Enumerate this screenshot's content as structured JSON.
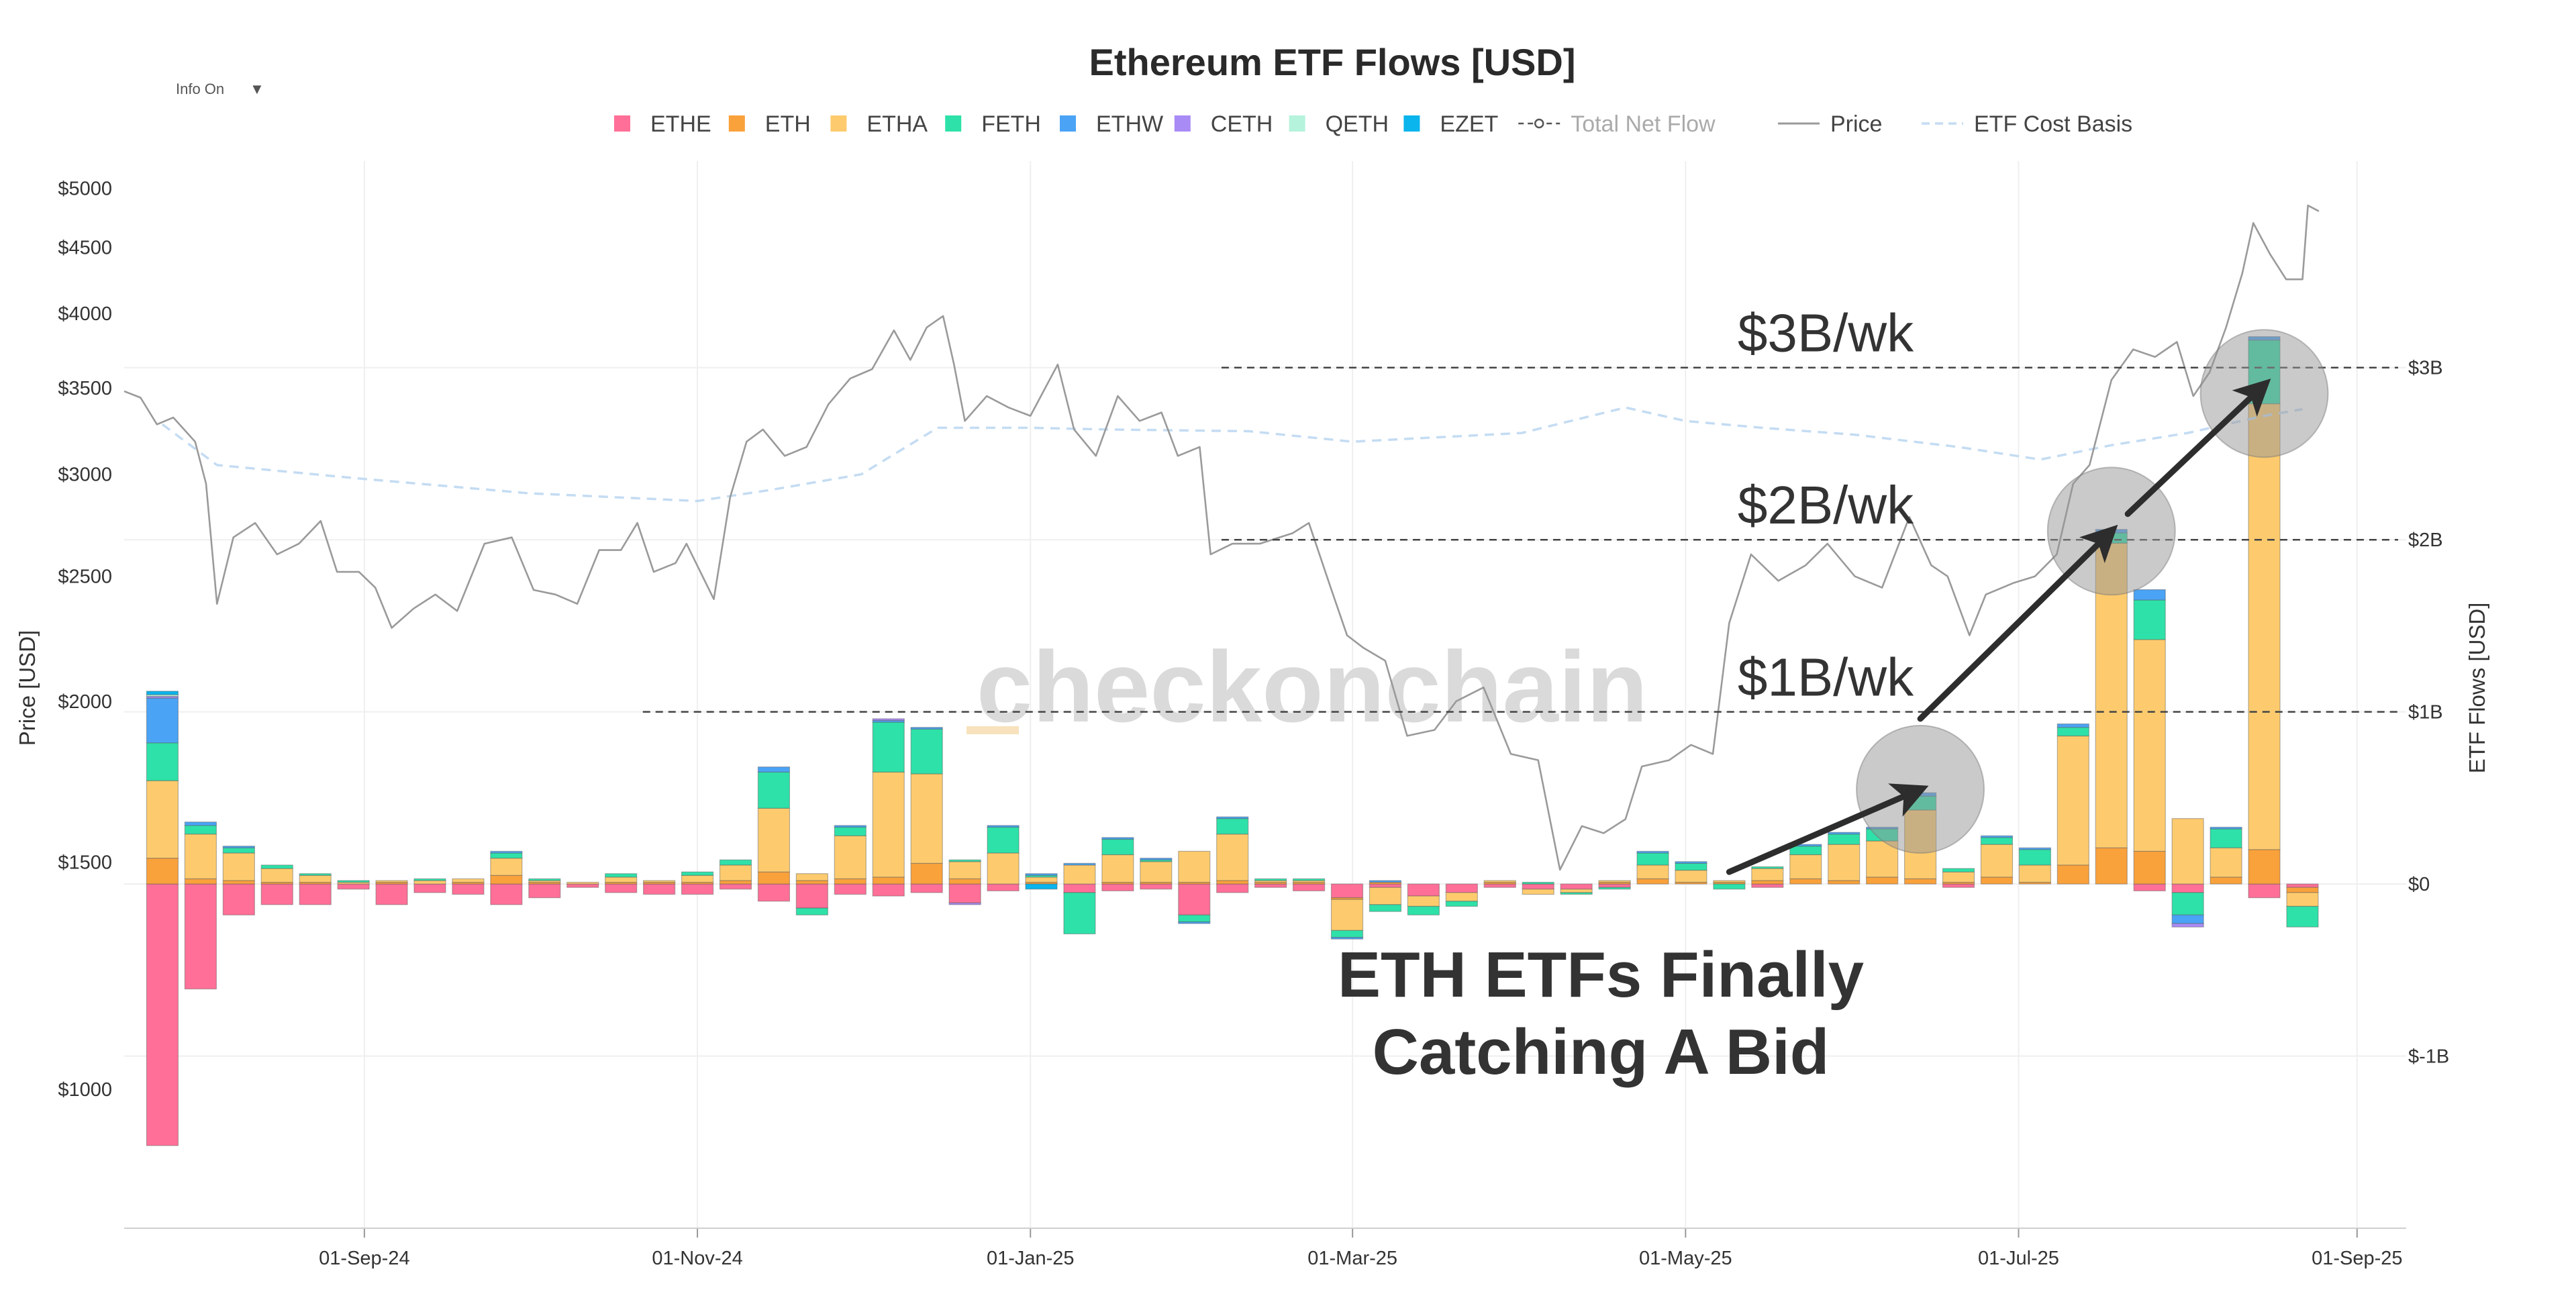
{
  "info_toggle": {
    "label": "Info On",
    "caret": "▼"
  },
  "watermark": "checkonchain",
  "chart_data": {
    "type": "bar",
    "title": "Ethereum ETF Flows [USD]",
    "y_left_label": "Price [USD]",
    "y_right_label": "ETF Flows [USD]",
    "x_range": [
      "2024-07-19",
      "2025-09-10"
    ],
    "x_ticks": [
      {
        "date": "2024-09-01",
        "label": "01-Sep-24"
      },
      {
        "date": "2024-11-01",
        "label": "01-Nov-24"
      },
      {
        "date": "2025-01-01",
        "label": "01-Jan-25"
      },
      {
        "date": "2025-03-01",
        "label": "01-Mar-25"
      },
      {
        "date": "2025-05-01",
        "label": "01-May-25"
      },
      {
        "date": "2025-07-01",
        "label": "01-Jul-25"
      },
      {
        "date": "2025-09-01",
        "label": "01-Sep-25"
      }
    ],
    "price_axis": {
      "scale": "log",
      "range": [
        780,
        5250
      ],
      "ticks": [
        {
          "value": 1000,
          "label": "$1000"
        },
        {
          "value": 1500,
          "label": "$1500"
        },
        {
          "value": 2000,
          "label": "$2000"
        },
        {
          "value": 2500,
          "label": "$2500"
        },
        {
          "value": 3000,
          "label": "$3000"
        },
        {
          "value": 3500,
          "label": "$3500"
        },
        {
          "value": 4000,
          "label": "$4000"
        },
        {
          "value": 4500,
          "label": "$4500"
        },
        {
          "value": 5000,
          "label": "$5000"
        }
      ]
    },
    "flow_axis": {
      "unit": "USD billions",
      "range": [
        -2.0,
        4.2
      ],
      "ticks": [
        {
          "value": -1,
          "label": "$-1B"
        },
        {
          "value": 0,
          "label": "$0"
        },
        {
          "value": 1,
          "label": "$1B"
        },
        {
          "value": 2,
          "label": "$2B"
        },
        {
          "value": 3,
          "label": "$3B"
        }
      ]
    },
    "legend": [
      {
        "name": "ETHE",
        "type": "bar",
        "color": "#ff6f97"
      },
      {
        "name": "ETH",
        "type": "bar",
        "color": "#f9a13b"
      },
      {
        "name": "ETHA",
        "type": "bar",
        "color": "#fdcb6e"
      },
      {
        "name": "FETH",
        "type": "bar",
        "color": "#2ee1a8"
      },
      {
        "name": "ETHW",
        "type": "bar",
        "color": "#4aa3f5"
      },
      {
        "name": "CETH",
        "type": "bar",
        "color": "#a98bf5"
      },
      {
        "name": "QETH",
        "type": "bar",
        "color": "#b6f3dc"
      },
      {
        "name": "EZET",
        "type": "bar",
        "color": "#0ab4ec"
      },
      {
        "name": "Total Net Flow",
        "type": "line-marker",
        "color": "#bbbbbb"
      },
      {
        "name": "Price",
        "type": "line",
        "color": "#9a9a9a"
      },
      {
        "name": "ETF Cost Basis",
        "type": "dash",
        "color": "#c4dcf3"
      }
    ],
    "fund_order": [
      "ETHE",
      "ETH",
      "ETHA",
      "FETH",
      "ETHW",
      "CETH",
      "QETH",
      "EZET"
    ],
    "weekly_flows": [
      {
        "week": "2024-07-26",
        "ETHE": -1.52,
        "ETH": 0.15,
        "ETHA": 0.45,
        "FETH": 0.22,
        "ETHW": 0.26,
        "CETH": 0.01,
        "QETH": 0.01,
        "EZET": 0.02
      },
      {
        "week": "2024-08-02",
        "ETHE": -0.61,
        "ETH": 0.03,
        "ETHA": 0.26,
        "FETH": 0.05,
        "ETHW": 0.02
      },
      {
        "week": "2024-08-09",
        "ETHE": -0.18,
        "ETH": 0.02,
        "ETHA": 0.16,
        "FETH": 0.03,
        "ETHW": 0.01
      },
      {
        "week": "2024-08-16",
        "ETHE": -0.12,
        "ETH": 0.01,
        "ETHA": 0.08,
        "FETH": 0.02
      },
      {
        "week": "2024-08-23",
        "ETHE": -0.12,
        "ETH": 0.01,
        "ETHA": 0.04,
        "FETH": 0.01
      },
      {
        "week": "2024-08-30",
        "ETHE": -0.03,
        "ETHA": 0.01,
        "FETH": 0.01
      },
      {
        "week": "2024-09-06",
        "ETHE": -0.12,
        "ETH": 0.01,
        "ETHA": 0.01
      },
      {
        "week": "2024-09-13",
        "ETHE": -0.05,
        "ETHA": 0.02,
        "FETH": 0.01
      },
      {
        "week": "2024-09-20",
        "ETHE": -0.06,
        "ETH": 0.01,
        "ETHA": 0.02
      },
      {
        "week": "2024-09-27",
        "ETHE": -0.12,
        "ETH": 0.05,
        "ETHA": 0.1,
        "FETH": 0.03,
        "ETHW": 0.01
      },
      {
        "week": "2024-10-04",
        "ETHE": -0.08,
        "ETH": 0.01,
        "ETHA": 0.01,
        "FETH": 0.01
      },
      {
        "week": "2024-10-11",
        "ETHE": -0.02,
        "ETHA": 0.01
      },
      {
        "week": "2024-10-18",
        "ETHE": -0.05,
        "ETH": 0.01,
        "ETHA": 0.03,
        "FETH": 0.02
      },
      {
        "week": "2024-10-25",
        "ETHE": -0.06,
        "ETH": 0.01,
        "ETHA": 0.01
      },
      {
        "week": "2024-11-01",
        "ETHE": -0.06,
        "ETH": 0.01,
        "ETHA": 0.04,
        "FETH": 0.02
      },
      {
        "week": "2024-11-08",
        "ETHE": -0.03,
        "ETH": 0.02,
        "ETHA": 0.09,
        "FETH": 0.03
      },
      {
        "week": "2024-11-15",
        "ETHE": -0.1,
        "ETH": 0.07,
        "ETHA": 0.37,
        "FETH": 0.21,
        "ETHW": 0.03
      },
      {
        "week": "2024-11-22",
        "ETHE": -0.14,
        "ETH": 0.02,
        "ETHA": 0.04,
        "FETH": -0.04
      },
      {
        "week": "2024-11-29",
        "ETHE": -0.06,
        "ETH": 0.03,
        "ETHA": 0.25,
        "FETH": 0.05,
        "ETHW": 0.01
      },
      {
        "week": "2024-12-06",
        "ETHE": -0.07,
        "ETH": 0.04,
        "ETHA": 0.61,
        "FETH": 0.29,
        "ETHW": 0.01,
        "CETH": 0.01
      },
      {
        "week": "2024-12-13",
        "ETHE": -0.05,
        "ETH": 0.12,
        "ETHA": 0.52,
        "FETH": 0.26,
        "ETHW": 0.01
      },
      {
        "week": "2024-12-20",
        "ETHE": -0.11,
        "ETH": 0.03,
        "ETHA": 0.1,
        "FETH": 0.01,
        "CETH": -0.01
      },
      {
        "week": "2024-12-27",
        "ETHE": -0.04,
        "ETHA": 0.18,
        "FETH": 0.15,
        "ETHW": 0.01
      },
      {
        "week": "2025-01-03",
        "ETH": 0.01,
        "ETHA": 0.03,
        "FETH": 0.01,
        "ETHW": 0.01,
        "EZET": -0.03
      },
      {
        "week": "2025-01-10",
        "ETHE": -0.05,
        "ETHA": 0.11,
        "FETH": -0.24,
        "ETHW": 0.01
      },
      {
        "week": "2025-01-17",
        "ETHE": -0.04,
        "ETH": 0.01,
        "ETHA": 0.16,
        "FETH": 0.09,
        "ETHW": 0.01
      },
      {
        "week": "2025-01-24",
        "ETHE": -0.03,
        "ETH": 0.01,
        "ETHA": 0.12,
        "FETH": 0.01,
        "ETHW": 0.01
      },
      {
        "week": "2025-01-31",
        "ETHE": -0.18,
        "ETH": 0.01,
        "ETHA": 0.18,
        "FETH": -0.04,
        "ETHW": -0.01
      },
      {
        "week": "2025-02-07",
        "ETHE": -0.05,
        "ETH": 0.02,
        "ETHA": 0.27,
        "FETH": 0.09,
        "ETHW": 0.01
      },
      {
        "week": "2025-02-14",
        "ETHE": -0.02,
        "ETH": 0.01,
        "ETHA": 0.01,
        "FETH": 0.01
      },
      {
        "week": "2025-02-21",
        "ETHE": -0.04,
        "ETH": 0.01,
        "ETHA": 0.01,
        "FETH": 0.01
      },
      {
        "week": "2025-02-28",
        "ETHE": -0.08,
        "ETH": -0.01,
        "ETHA": -0.18,
        "FETH": -0.04,
        "ETHW": -0.01
      },
      {
        "week": "2025-03-07",
        "ETHE": -0.02,
        "ETH": 0.01,
        "ETHA": -0.1,
        "FETH": -0.04,
        "ETHW": 0.01
      },
      {
        "week": "2025-03-14",
        "ETHE": -0.07,
        "ETHA": -0.06,
        "FETH": -0.05
      },
      {
        "week": "2025-03-21",
        "ETHE": -0.05,
        "ETHA": -0.05,
        "FETH": -0.03
      },
      {
        "week": "2025-03-28",
        "ETHE": -0.02,
        "ETH": 0.01,
        "ETHA": 0.01
      },
      {
        "week": "2025-04-04",
        "ETHE": -0.03,
        "ETHA": -0.03,
        "FETH": 0.01
      },
      {
        "week": "2025-04-11",
        "ETHE": -0.03,
        "ETHA": -0.02,
        "FETH": -0.01
      },
      {
        "week": "2025-04-18",
        "ETHE": -0.02,
        "ETH": 0.01,
        "ETHA": 0.01,
        "FETH": -0.01
      },
      {
        "week": "2025-04-25",
        "ETH": 0.03,
        "ETHA": 0.08,
        "FETH": 0.07,
        "ETHW": 0.01
      },
      {
        "week": "2025-05-02",
        "ETH": 0.01,
        "ETHA": 0.07,
        "FETH": 0.04,
        "ETHW": 0.01
      },
      {
        "week": "2025-05-09",
        "ETH": 0.01,
        "ETHA": 0.01,
        "FETH": -0.03
      },
      {
        "week": "2025-05-16",
        "ETHE": -0.02,
        "ETH": 0.02,
        "ETHA": 0.07,
        "FETH": 0.01
      },
      {
        "week": "2025-05-23",
        "ETH": 0.03,
        "ETHA": 0.14,
        "FETH": 0.05,
        "ETHW": 0.01
      },
      {
        "week": "2025-05-30",
        "ETH": 0.02,
        "ETHA": 0.21,
        "FETH": 0.06,
        "ETHW": 0.01
      },
      {
        "week": "2025-06-06",
        "ETH": 0.04,
        "ETHA": 0.21,
        "FETH": 0.07,
        "ETHW": 0.01
      },
      {
        "week": "2025-06-13",
        "ETH": 0.03,
        "ETHA": 0.4,
        "FETH": 0.08,
        "ETHW": 0.02
      },
      {
        "week": "2025-06-20",
        "ETHE": -0.02,
        "ETH": 0.01,
        "ETHA": 0.06,
        "FETH": 0.02
      },
      {
        "week": "2025-06-27",
        "ETH": 0.04,
        "ETHA": 0.19,
        "FETH": 0.04,
        "ETHW": 0.01
      },
      {
        "week": "2025-07-04",
        "ETH": 0.01,
        "ETHA": 0.1,
        "FETH": 0.09,
        "ETHW": 0.01
      },
      {
        "week": "2025-07-11",
        "ETH": 0.11,
        "ETHA": 0.75,
        "FETH": 0.05,
        "ETHW": 0.02
      },
      {
        "week": "2025-07-18",
        "ETH": 0.21,
        "ETHA": 1.77,
        "FETH": 0.06,
        "ETHW": 0.02
      },
      {
        "week": "2025-07-25",
        "ETHE": -0.04,
        "ETH": 0.19,
        "ETHA": 1.23,
        "FETH": 0.23,
        "ETHW": 0.06
      },
      {
        "week": "2025-08-01",
        "ETHE": -0.05,
        "ETHA": 0.38,
        "FETH": -0.13,
        "ETHW": -0.05,
        "CETH": -0.02
      },
      {
        "week": "2025-08-08",
        "ETH": 0.04,
        "ETHA": 0.17,
        "FETH": 0.11,
        "ETHW": 0.01
      },
      {
        "week": "2025-08-15",
        "ETHE": -0.08,
        "ETH": 0.2,
        "ETHA": 2.59,
        "FETH": 0.37,
        "ETHW": 0.02
      },
      {
        "week": "2025-08-22",
        "ETHE": -0.02,
        "ETH": -0.03,
        "ETHA": -0.08,
        "FETH": -0.12
      }
    ],
    "price_series": [
      [
        "2024-07-19",
        3480
      ],
      [
        "2024-07-22",
        3440
      ],
      [
        "2024-07-25",
        3280
      ],
      [
        "2024-07-28",
        3320
      ],
      [
        "2024-08-01",
        3180
      ],
      [
        "2024-08-03",
        2950
      ],
      [
        "2024-08-05",
        2380
      ],
      [
        "2024-08-08",
        2680
      ],
      [
        "2024-08-12",
        2750
      ],
      [
        "2024-08-16",
        2600
      ],
      [
        "2024-08-20",
        2650
      ],
      [
        "2024-08-24",
        2760
      ],
      [
        "2024-08-27",
        2520
      ],
      [
        "2024-08-31",
        2520
      ],
      [
        "2024-09-03",
        2450
      ],
      [
        "2024-09-06",
        2280
      ],
      [
        "2024-09-10",
        2360
      ],
      [
        "2024-09-14",
        2420
      ],
      [
        "2024-09-18",
        2350
      ],
      [
        "2024-09-23",
        2650
      ],
      [
        "2024-09-28",
        2680
      ],
      [
        "2024-10-02",
        2440
      ],
      [
        "2024-10-06",
        2420
      ],
      [
        "2024-10-10",
        2380
      ],
      [
        "2024-10-14",
        2620
      ],
      [
        "2024-10-18",
        2620
      ],
      [
        "2024-10-21",
        2750
      ],
      [
        "2024-10-24",
        2520
      ],
      [
        "2024-10-28",
        2560
      ],
      [
        "2024-10-30",
        2650
      ],
      [
        "2024-11-04",
        2400
      ],
      [
        "2024-11-07",
        2880
      ],
      [
        "2024-11-10",
        3180
      ],
      [
        "2024-11-13",
        3250
      ],
      [
        "2024-11-17",
        3100
      ],
      [
        "2024-11-21",
        3150
      ],
      [
        "2024-11-25",
        3400
      ],
      [
        "2024-11-29",
        3560
      ],
      [
        "2024-12-03",
        3620
      ],
      [
        "2024-12-07",
        3880
      ],
      [
        "2024-12-10",
        3680
      ],
      [
        "2024-12-13",
        3900
      ],
      [
        "2024-12-16",
        3980
      ],
      [
        "2024-12-18",
        3650
      ],
      [
        "2024-12-20",
        3300
      ],
      [
        "2024-12-24",
        3450
      ],
      [
        "2024-12-28",
        3380
      ],
      [
        "2025-01-01",
        3330
      ],
      [
        "2025-01-06",
        3650
      ],
      [
        "2025-01-09",
        3250
      ],
      [
        "2025-01-13",
        3100
      ],
      [
        "2025-01-17",
        3450
      ],
      [
        "2025-01-21",
        3300
      ],
      [
        "2025-01-25",
        3350
      ],
      [
        "2025-01-28",
        3100
      ],
      [
        "2025-02-01",
        3150
      ],
      [
        "2025-02-03",
        2600
      ],
      [
        "2025-02-07",
        2650
      ],
      [
        "2025-02-12",
        2650
      ],
      [
        "2025-02-18",
        2700
      ],
      [
        "2025-02-21",
        2750
      ],
      [
        "2025-02-25",
        2450
      ],
      [
        "2025-02-28",
        2250
      ],
      [
        "2025-03-03",
        2200
      ],
      [
        "2025-03-07",
        2150
      ],
      [
        "2025-03-11",
        1880
      ],
      [
        "2025-03-16",
        1900
      ],
      [
        "2025-03-20",
        2000
      ],
      [
        "2025-03-25",
        2050
      ],
      [
        "2025-03-30",
        1820
      ],
      [
        "2025-04-04",
        1800
      ],
      [
        "2025-04-08",
        1480
      ],
      [
        "2025-04-12",
        1600
      ],
      [
        "2025-04-16",
        1580
      ],
      [
        "2025-04-20",
        1620
      ],
      [
        "2025-04-23",
        1780
      ],
      [
        "2025-04-28",
        1800
      ],
      [
        "2025-05-02",
        1850
      ],
      [
        "2025-05-06",
        1820
      ],
      [
        "2025-05-09",
        2300
      ],
      [
        "2025-05-13",
        2600
      ],
      [
        "2025-05-18",
        2480
      ],
      [
        "2025-05-23",
        2550
      ],
      [
        "2025-05-27",
        2650
      ],
      [
        "2025-06-01",
        2500
      ],
      [
        "2025-06-06",
        2450
      ],
      [
        "2025-06-11",
        2780
      ],
      [
        "2025-06-15",
        2550
      ],
      [
        "2025-06-18",
        2500
      ],
      [
        "2025-06-22",
        2250
      ],
      [
        "2025-06-25",
        2420
      ],
      [
        "2025-06-30",
        2470
      ],
      [
        "2025-07-04",
        2500
      ],
      [
        "2025-07-08",
        2600
      ],
      [
        "2025-07-11",
        2950
      ],
      [
        "2025-07-14",
        3050
      ],
      [
        "2025-07-18",
        3550
      ],
      [
        "2025-07-22",
        3750
      ],
      [
        "2025-07-26",
        3700
      ],
      [
        "2025-07-30",
        3800
      ],
      [
        "2025-08-02",
        3450
      ],
      [
        "2025-08-05",
        3600
      ],
      [
        "2025-08-08",
        3900
      ],
      [
        "2025-08-11",
        4300
      ],
      [
        "2025-08-13",
        4700
      ],
      [
        "2025-08-16",
        4450
      ],
      [
        "2025-08-19",
        4250
      ],
      [
        "2025-08-22",
        4250
      ],
      [
        "2025-08-23",
        4850
      ],
      [
        "2025-08-25",
        4800
      ]
    ],
    "cost_basis_series": [
      [
        "2024-07-26",
        3280
      ],
      [
        "2024-08-05",
        3050
      ],
      [
        "2024-08-30",
        2980
      ],
      [
        "2024-10-01",
        2900
      ],
      [
        "2024-11-01",
        2860
      ],
      [
        "2024-11-15",
        2920
      ],
      [
        "2024-12-01",
        3000
      ],
      [
        "2024-12-15",
        3260
      ],
      [
        "2025-01-01",
        3260
      ],
      [
        "2025-01-15",
        3250
      ],
      [
        "2025-02-10",
        3240
      ],
      [
        "2025-03-01",
        3180
      ],
      [
        "2025-04-01",
        3230
      ],
      [
        "2025-04-20",
        3380
      ],
      [
        "2025-05-01",
        3300
      ],
      [
        "2025-05-15",
        3260
      ],
      [
        "2025-06-01",
        3220
      ],
      [
        "2025-06-20",
        3150
      ],
      [
        "2025-07-05",
        3080
      ],
      [
        "2025-07-18",
        3160
      ],
      [
        "2025-08-01",
        3230
      ],
      [
        "2025-08-15",
        3330
      ],
      [
        "2025-08-22",
        3370
      ]
    ],
    "annotations": {
      "reference_lines": [
        {
          "value": 1,
          "label": "$1B/wk",
          "x_start": "2024-10-22"
        },
        {
          "value": 2,
          "label": "$2B/wk",
          "x_start": "2025-02-05"
        },
        {
          "value": 3,
          "label": "$3B/wk",
          "x_start": "2025-02-05"
        }
      ],
      "highlights": [
        {
          "week": "2025-06-13",
          "value": 0.55
        },
        {
          "week": "2025-07-18",
          "value": 2.05
        },
        {
          "week": "2025-08-15",
          "value": 2.85
        }
      ],
      "arrows": [
        {
          "from": {
            "week": "2025-05-09",
            "value": 0.07
          },
          "to": {
            "week": "2025-06-13",
            "value": 0.55
          }
        },
        {
          "from": {
            "week": "2025-06-13",
            "value": 0.96
          },
          "to": {
            "week": "2025-07-18",
            "value": 2.05
          }
        },
        {
          "from": {
            "week": "2025-07-21",
            "value": 2.15
          },
          "to": {
            "week": "2025-08-15",
            "value": 2.9
          }
        }
      ],
      "callout_lines": [
        "ETH ETFs Finally",
        "Catching A Bid"
      ]
    }
  }
}
